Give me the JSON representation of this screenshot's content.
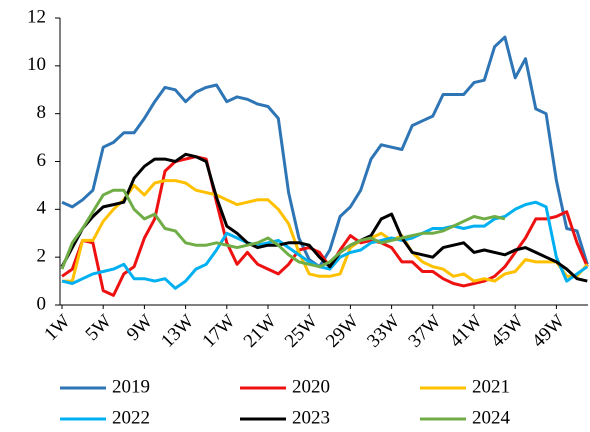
{
  "chart_data": {
    "type": "line",
    "categories": [
      "1W",
      null,
      null,
      null,
      "5W",
      null,
      null,
      null,
      "9W",
      null,
      null,
      null,
      "13W",
      null,
      null,
      null,
      "17W",
      null,
      null,
      null,
      "21W",
      null,
      null,
      null,
      "25W",
      null,
      null,
      null,
      "29W",
      null,
      null,
      null,
      "33W",
      null,
      null,
      null,
      "37W",
      null,
      null,
      null,
      "41W",
      null,
      null,
      null,
      "45W",
      null,
      null,
      null,
      "49W",
      null,
      null,
      null
    ],
    "ylim": [
      0,
      12
    ],
    "yticks": [
      0,
      2,
      4,
      6,
      8,
      10,
      12
    ],
    "grid": false,
    "legend": "bottom",
    "series": [
      {
        "name": "2019",
        "color": "#2e75b6",
        "values": [
          4.3,
          4.1,
          4.4,
          4.8,
          6.6,
          6.8,
          7.2,
          7.2,
          7.8,
          8.5,
          9.1,
          9.0,
          8.5,
          8.9,
          9.1,
          9.2,
          8.5,
          8.7,
          8.6,
          8.4,
          8.3,
          7.8,
          4.7,
          2.8,
          1.9,
          1.6,
          2.3,
          3.7,
          4.1,
          4.8,
          6.1,
          6.7,
          6.6,
          6.5,
          7.5,
          7.7,
          7.9,
          8.8,
          8.8,
          8.8,
          9.3,
          9.4,
          10.8,
          11.2,
          9.5,
          10.3,
          8.2,
          8.0,
          5.2,
          3.2,
          3.1,
          1.7
        ]
      },
      {
        "name": "2020",
        "color": "#ee1111",
        "values": [
          1.2,
          1.5,
          2.7,
          2.6,
          0.6,
          0.4,
          1.3,
          1.6,
          2.8,
          3.6,
          5.6,
          6.0,
          6.1,
          6.2,
          6.1,
          4.3,
          2.6,
          1.7,
          2.2,
          1.7,
          1.5,
          1.3,
          1.7,
          2.3,
          2.4,
          2.2,
          1.6,
          2.3,
          2.9,
          2.6,
          2.7,
          2.6,
          2.4,
          1.8,
          1.8,
          1.4,
          1.4,
          1.1,
          0.9,
          0.8,
          0.9,
          1.0,
          1.2,
          1.6,
          2.2,
          2.8,
          3.6,
          3.6,
          3.7,
          3.9,
          2.6,
          1.6
        ]
      },
      {
        "name": "2021",
        "color": "#ffc000",
        "values": [
          1.0,
          1.0,
          2.7,
          2.7,
          3.5,
          4.0,
          4.4,
          5.0,
          4.6,
          5.1,
          5.2,
          5.2,
          5.1,
          4.8,
          4.7,
          4.6,
          4.4,
          4.2,
          4.3,
          4.4,
          4.4,
          4.0,
          3.4,
          2.2,
          1.3,
          1.2,
          1.2,
          1.3,
          2.4,
          2.7,
          2.8,
          3.0,
          2.7,
          2.9,
          2.2,
          1.8,
          1.6,
          1.5,
          1.2,
          1.3,
          1.0,
          1.1,
          1.0,
          1.3,
          1.4,
          1.9,
          1.8,
          1.8,
          1.8,
          1.2,
          1.2,
          1.7
        ]
      },
      {
        "name": "2022",
        "color": "#00b0f0",
        "values": [
          1.0,
          0.9,
          1.1,
          1.3,
          1.4,
          1.5,
          1.7,
          1.1,
          1.1,
          1.0,
          1.1,
          0.7,
          1.0,
          1.5,
          1.7,
          2.3,
          3.0,
          2.8,
          2.6,
          2.5,
          2.6,
          2.7,
          2.4,
          2.1,
          1.8,
          1.6,
          1.5,
          2.0,
          2.2,
          2.3,
          2.6,
          2.7,
          2.8,
          2.7,
          2.8,
          3.0,
          3.2,
          3.2,
          3.3,
          3.2,
          3.3,
          3.3,
          3.6,
          3.7,
          4.0,
          4.2,
          4.3,
          4.1,
          2.0,
          1.0,
          1.3,
          1.6
        ]
      },
      {
        "name": "2023",
        "color": "#000000",
        "values": [
          1.6,
          2.4,
          3.2,
          3.7,
          4.1,
          4.2,
          4.3,
          5.3,
          5.8,
          6.1,
          6.1,
          6.0,
          6.3,
          6.2,
          6.0,
          4.5,
          3.3,
          3.0,
          2.6,
          2.4,
          2.5,
          2.5,
          2.6,
          2.6,
          2.5,
          2.0,
          1.6,
          2.2,
          2.5,
          2.7,
          2.9,
          3.6,
          3.8,
          2.8,
          2.2,
          2.1,
          2.0,
          2.4,
          2.5,
          2.6,
          2.2,
          2.3,
          2.2,
          2.1,
          2.3,
          2.4,
          2.2,
          2.0,
          1.8,
          1.5,
          1.1,
          1.0
        ]
      },
      {
        "name": "2024",
        "color": "#70ad47",
        "values": [
          1.5,
          2.6,
          3.2,
          3.9,
          4.6,
          4.8,
          4.8,
          4.0,
          3.6,
          3.8,
          3.2,
          3.1,
          2.6,
          2.5,
          2.5,
          2.6,
          2.5,
          2.4,
          2.5,
          2.6,
          2.8,
          2.5,
          2.1,
          1.8,
          1.7,
          1.6,
          1.8,
          2.2,
          2.5,
          2.7,
          2.8,
          2.6,
          2.7,
          2.8,
          2.9,
          3.0,
          3.0,
          3.1,
          3.3,
          3.5,
          3.7,
          3.6,
          3.7,
          3.6,
          null,
          null,
          null,
          null,
          null,
          null,
          null,
          null
        ]
      }
    ]
  }
}
